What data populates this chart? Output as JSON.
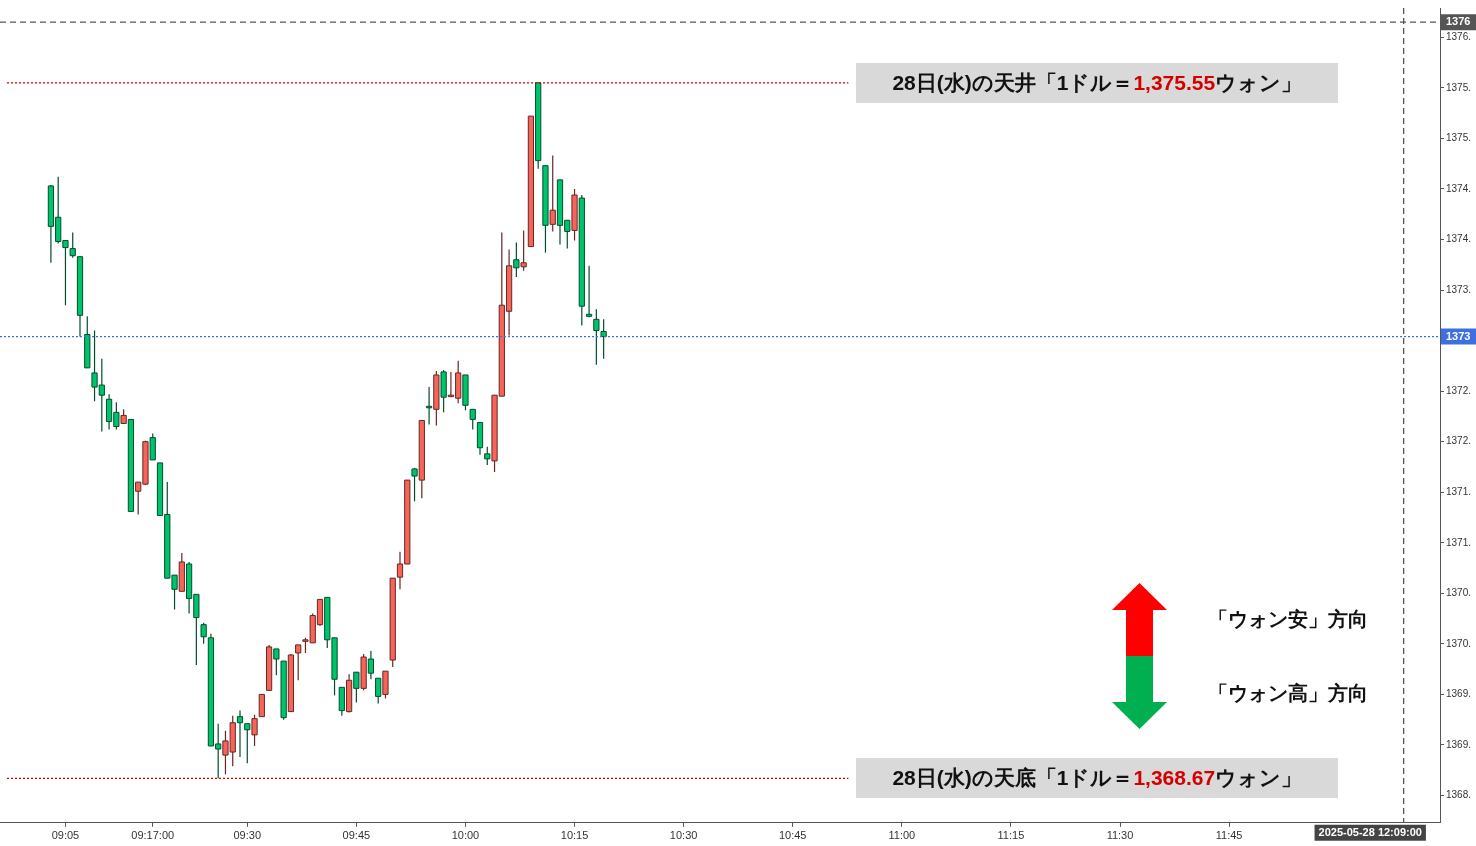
{
  "chart_data": {
    "type": "candlestick",
    "x": [
      "2025-05-28T09:03",
      "2025-05-28T09:04",
      "2025-05-28T09:05",
      "2025-05-28T09:06",
      "2025-05-28T09:07",
      "2025-05-28T09:08",
      "2025-05-28T09:09",
      "2025-05-28T09:10",
      "2025-05-28T09:11",
      "2025-05-28T09:12",
      "2025-05-28T09:13",
      "2025-05-28T09:14",
      "2025-05-28T09:15",
      "2025-05-28T09:16",
      "2025-05-28T09:17",
      "2025-05-28T09:18",
      "2025-05-28T09:19",
      "2025-05-28T09:20",
      "2025-05-28T09:21",
      "2025-05-28T09:22",
      "2025-05-28T09:23",
      "2025-05-28T09:24",
      "2025-05-28T09:25",
      "2025-05-28T09:26",
      "2025-05-28T09:27",
      "2025-05-28T09:28",
      "2025-05-28T09:29",
      "2025-05-28T09:30",
      "2025-05-28T09:31",
      "2025-05-28T09:32",
      "2025-05-28T09:33",
      "2025-05-28T09:34",
      "2025-05-28T09:35",
      "2025-05-28T09:36",
      "2025-05-28T09:37",
      "2025-05-28T09:38",
      "2025-05-28T09:39",
      "2025-05-28T09:40",
      "2025-05-28T09:41",
      "2025-05-28T09:42",
      "2025-05-28T09:43",
      "2025-05-28T09:44",
      "2025-05-28T09:45",
      "2025-05-28T09:46",
      "2025-05-28T09:47",
      "2025-05-28T09:48",
      "2025-05-28T09:49",
      "2025-05-28T09:50",
      "2025-05-28T09:51",
      "2025-05-28T09:52",
      "2025-05-28T09:53",
      "2025-05-28T09:54",
      "2025-05-28T09:55",
      "2025-05-28T09:56",
      "2025-05-28T09:57",
      "2025-05-28T09:58",
      "2025-05-28T09:59",
      "2025-05-28T10:00",
      "2025-05-28T10:01",
      "2025-05-28T10:02",
      "2025-05-28T10:03",
      "2025-05-28T10:04",
      "2025-05-28T10:05",
      "2025-05-28T10:06",
      "2025-05-28T10:07",
      "2025-05-28T10:08",
      "2025-05-28T10:09",
      "2025-05-28T10:10",
      "2025-05-28T10:11",
      "2025-05-28T10:12",
      "2025-05-28T10:13",
      "2025-05-28T10:14",
      "2025-05-28T10:15",
      "2025-05-28T10:16",
      "2025-05-28T10:17",
      "2025-05-28T10:18",
      "2025-05-28T10:19"
    ],
    "ohlc": [
      [
        1374.53,
        1374.54,
        1373.77,
        1374.13
      ],
      [
        1374.22,
        1374.62,
        1373.96,
        1373.98
      ],
      [
        1373.99,
        1373.99,
        1373.35,
        1373.92
      ],
      [
        1373.91,
        1374.07,
        1373.82,
        1373.84
      ],
      [
        1373.83,
        1373.83,
        1373.04,
        1373.25
      ],
      [
        1373.06,
        1373.24,
        1372.73,
        1372.73
      ],
      [
        1372.68,
        1373.1,
        1372.4,
        1372.54
      ],
      [
        1372.56,
        1372.82,
        1372.1,
        1372.46
      ],
      [
        1372.42,
        1372.47,
        1372.12,
        1372.2
      ],
      [
        1372.29,
        1372.39,
        1372.12,
        1372.15
      ],
      [
        1372.18,
        1372.32,
        1372.18,
        1372.26
      ],
      [
        1372.22,
        1372.22,
        1371.31,
        1371.31
      ],
      [
        1371.51,
        1371.6,
        1371.28,
        1371.6
      ],
      [
        1371.58,
        1372.01,
        1371.57,
        1372.0
      ],
      [
        1372.04,
        1372.08,
        1371.82,
        1371.82
      ],
      [
        1371.79,
        1371.79,
        1371.27,
        1371.27
      ],
      [
        1371.28,
        1371.6,
        1370.65,
        1370.65
      ],
      [
        1370.68,
        1370.68,
        1370.34,
        1370.54
      ],
      [
        1370.52,
        1370.9,
        1370.52,
        1370.81
      ],
      [
        1370.79,
        1370.81,
        1370.3,
        1370.45
      ],
      [
        1370.49,
        1370.49,
        1369.79,
        1370.26
      ],
      [
        1370.19,
        1370.21,
        1370.0,
        1370.07
      ],
      [
        1370.06,
        1370.1,
        1368.99,
        1368.99
      ],
      [
        1369.01,
        1369.21,
        1368.67,
        1368.96
      ],
      [
        1368.9,
        1369.14,
        1368.71,
        1369.04
      ],
      [
        1368.93,
        1369.29,
        1368.79,
        1369.22
      ],
      [
        1369.28,
        1369.34,
        1368.88,
        1369.22
      ],
      [
        1369.21,
        1369.21,
        1368.82,
        1369.15
      ],
      [
        1369.1,
        1369.3,
        1368.99,
        1369.26
      ],
      [
        1369.28,
        1369.5,
        1369.28,
        1369.5
      ],
      [
        1369.54,
        1369.99,
        1369.54,
        1369.97
      ],
      [
        1369.95,
        1369.95,
        1369.69,
        1369.85
      ],
      [
        1369.83,
        1369.83,
        1369.25,
        1369.27
      ],
      [
        1369.33,
        1369.9,
        1369.33,
        1369.89
      ],
      [
        1369.91,
        1369.99,
        1369.64,
        1369.99
      ],
      [
        1370.03,
        1370.06,
        1369.91,
        1370.04
      ],
      [
        1370.01,
        1370.3,
        1370.01,
        1370.28
      ],
      [
        1370.19,
        1370.44,
        1370.18,
        1370.44
      ],
      [
        1370.46,
        1370.46,
        1369.96,
        1370.04
      ],
      [
        1370.06,
        1370.06,
        1369.49,
        1369.65
      ],
      [
        1369.57,
        1369.57,
        1369.29,
        1369.34
      ],
      [
        1369.33,
        1369.7,
        1369.32,
        1369.64
      ],
      [
        1369.72,
        1369.72,
        1369.42,
        1369.56
      ],
      [
        1369.56,
        1369.9,
        1369.54,
        1369.87
      ],
      [
        1369.85,
        1369.93,
        1369.65,
        1369.71
      ],
      [
        1369.66,
        1369.66,
        1369.41,
        1369.48
      ],
      [
        1369.5,
        1369.73,
        1369.46,
        1369.73
      ],
      [
        1369.84,
        1370.65,
        1369.77,
        1370.65
      ],
      [
        1370.66,
        1370.91,
        1370.54,
        1370.79
      ],
      [
        1370.79,
        1371.62,
        1370.79,
        1371.62
      ],
      [
        1371.73,
        1371.74,
        1371.41,
        1371.66
      ],
      [
        1371.62,
        1372.21,
        1371.44,
        1372.21
      ],
      [
        1372.35,
        1372.54,
        1372.17,
        1372.34
      ],
      [
        1372.32,
        1372.7,
        1372.16,
        1372.66
      ],
      [
        1372.69,
        1372.71,
        1372.29,
        1372.44
      ],
      [
        1372.45,
        1372.69,
        1372.45,
        1372.46
      ],
      [
        1372.43,
        1372.8,
        1372.38,
        1372.68
      ],
      [
        1372.66,
        1372.66,
        1372.31,
        1372.36
      ],
      [
        1372.32,
        1372.32,
        1372.12,
        1372.22
      ],
      [
        1372.19,
        1372.19,
        1371.87,
        1371.94
      ],
      [
        1371.88,
        1371.95,
        1371.77,
        1371.83
      ],
      [
        1371.81,
        1372.46,
        1371.7,
        1372.46
      ],
      [
        1372.45,
        1374.07,
        1372.45,
        1373.35
      ],
      [
        1373.29,
        1373.9,
        1373.05,
        1373.74
      ],
      [
        1373.8,
        1373.97,
        1373.63,
        1373.72
      ],
      [
        1373.73,
        1374.09,
        1373.69,
        1373.77
      ],
      [
        1373.93,
        1375.22,
        1373.93,
        1375.22
      ],
      [
        1375.55,
        1375.55,
        1374.7,
        1374.78
      ],
      [
        1374.73,
        1374.73,
        1373.87,
        1374.14
      ],
      [
        1374.15,
        1374.83,
        1374.08,
        1374.29
      ],
      [
        1374.59,
        1374.59,
        1373.95,
        1374.14
      ],
      [
        1374.19,
        1374.19,
        1373.91,
        1374.08
      ],
      [
        1374.09,
        1374.5,
        1373.99,
        1374.44
      ],
      [
        1374.41,
        1374.44,
        1373.15,
        1373.34
      ],
      [
        1373.26,
        1373.74,
        1373.23,
        1373.24
      ],
      [
        1373.21,
        1373.31,
        1372.76,
        1373.1
      ],
      [
        1373.09,
        1373.21,
        1372.82,
        1373.04
      ]
    ],
    "colors": [
      "#00c46b",
      "#00c46b",
      "#00c46b",
      "#00c46b",
      "#00c46b",
      "#00c46b",
      "#00c46b",
      "#00c46b",
      "#00c46b",
      "#00c46b",
      "#f7645a",
      "#00c46b",
      "#f7645a",
      "#f7645a",
      "#00c46b",
      "#00c46b",
      "#00c46b",
      "#00c46b",
      "#f7645a",
      "#00c46b",
      "#00c46b",
      "#00c46b",
      "#00c46b",
      "#00c46b",
      "#f7645a",
      "#f7645a",
      "#00c46b",
      "#00c46b",
      "#f7645a",
      "#f7645a",
      "#f7645a",
      "#00c46b",
      "#00c46b",
      "#f7645a",
      "#f7645a",
      "#f7645a",
      "#f7645a",
      "#f7645a",
      "#00c46b",
      "#00c46b",
      "#00c46b",
      "#f7645a",
      "#00c46b",
      "#f7645a",
      "#00c46b",
      "#00c46b",
      "#f7645a",
      "#f7645a",
      "#f7645a",
      "#f7645a",
      "#00c46b",
      "#f7645a",
      "#00c46b",
      "#f7645a",
      "#00c46b",
      "#f7645a",
      "#f7645a",
      "#00c46b",
      "#00c46b",
      "#00c46b",
      "#00c46b",
      "#f7645a",
      "#f7645a",
      "#f7645a",
      "#00c46b",
      "#f7645a",
      "#f7645a",
      "#00c46b",
      "#00c46b",
      "#f7645a",
      "#00c46b",
      "#00c46b",
      "#f7645a",
      "#00c46b",
      "#00c46b",
      "#00c46b",
      "#00c46b"
    ],
    "xlim": [
      "2025-05-28T08:56",
      "2025-05-28T12:14"
    ],
    "xticks": [
      {
        "value": "2025-05-28T09:05",
        "label": "09:05"
      },
      {
        "value": "2025-05-28T09:17",
        "label": "09:17:00"
      },
      {
        "value": "2025-05-28T09:30",
        "label": "09:30"
      },
      {
        "value": "2025-05-28T09:45",
        "label": "09:45"
      },
      {
        "value": "2025-05-28T10:00",
        "label": "10:00"
      },
      {
        "value": "2025-05-28T10:15",
        "label": "10:15"
      },
      {
        "value": "2025-05-28T10:30",
        "label": "10:30"
      },
      {
        "value": "2025-05-28T10:45",
        "label": "10:45"
      },
      {
        "value": "2025-05-28T11:00",
        "label": "11:00"
      },
      {
        "value": "2025-05-28T11:15",
        "label": "11:15"
      },
      {
        "value": "2025-05-28T11:30",
        "label": "11:30"
      },
      {
        "value": "2025-05-28T11:45",
        "label": "11:45"
      }
    ],
    "ylim": [
      1368.23,
      1376.29
    ],
    "yticks": [
      {
        "value": 1376,
        "label": "1376."
      },
      {
        "value": 1375.5,
        "label": "1375."
      },
      {
        "value": 1375,
        "label": "1375."
      },
      {
        "value": 1374.5,
        "label": "1374."
      },
      {
        "value": 1374,
        "label": "1374."
      },
      {
        "value": 1373.5,
        "label": "1373."
      },
      {
        "value": 1372.5,
        "label": "1372."
      },
      {
        "value": 1372,
        "label": "1372."
      },
      {
        "value": 1371.5,
        "label": "1371."
      },
      {
        "value": 1371,
        "label": "1371."
      },
      {
        "value": 1370.5,
        "label": "1370."
      },
      {
        "value": 1370,
        "label": "1370."
      },
      {
        "value": 1369.5,
        "label": "1369."
      },
      {
        "value": 1369,
        "label": "1369."
      },
      {
        "value": 1368.5,
        "label": "1368."
      }
    ],
    "ref_lines": [
      {
        "axis": "y",
        "value": 1375.55,
        "label": "28日(水)の天井「1ドル＝1,375.55ウォン」",
        "color": "#d40000",
        "line_style": "dotted"
      },
      {
        "axis": "y",
        "value": 1368.67,
        "label": "28日(水)の天底「1ドル＝1,368.67ウォン」",
        "color": "#d40000",
        "line_style": "dotted"
      },
      {
        "axis": "y",
        "value": 1373.04,
        "label": "1373",
        "color": "#3d6fe0",
        "line_style": "dotted"
      },
      {
        "axis": "y",
        "value": 1376.15,
        "label": "1376",
        "color": "#555555",
        "line_style": "dashed"
      },
      {
        "axis": "x",
        "value": "2025-05-28T12:09",
        "label": "2025-05-28 12:09:00",
        "color": "#555555",
        "line_style": "dashed"
      }
    ],
    "annotations": [
      "「ウォン安」方向",
      "「ウォン高」方向"
    ],
    "grid": false,
    "legend": false
  }
}
